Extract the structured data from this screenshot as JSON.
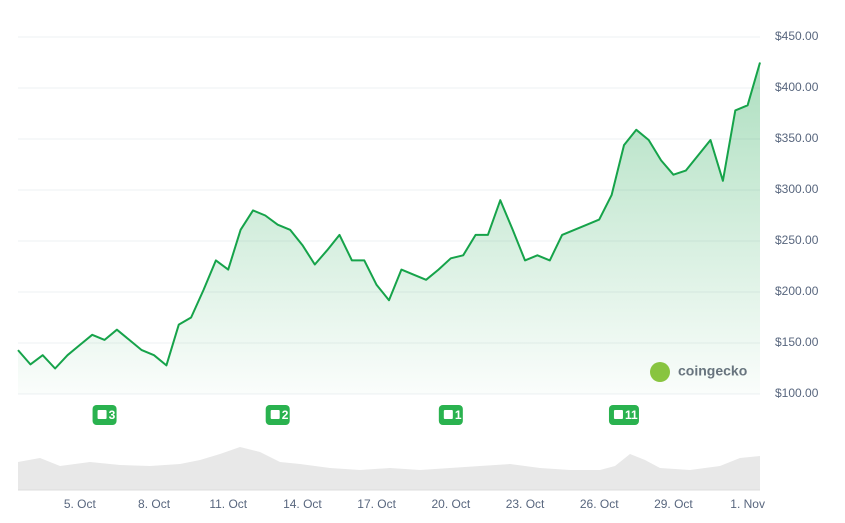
{
  "chart_data": {
    "type": "area",
    "categories": [
      null,
      null,
      null,
      null,
      null,
      "5. Oct",
      null,
      null,
      null,
      null,
      null,
      "8. Oct",
      null,
      null,
      null,
      null,
      null,
      "11. Oct",
      null,
      null,
      null,
      null,
      null,
      "14. Oct",
      null,
      null,
      null,
      null,
      null,
      "17. Oct",
      null,
      null,
      null,
      null,
      null,
      "20. Oct",
      null,
      null,
      null,
      null,
      null,
      "23. Oct",
      null,
      null,
      null,
      null,
      null,
      "26. Oct",
      null,
      null,
      null,
      null,
      null,
      "29. Oct",
      null,
      null,
      null,
      null,
      null,
      "1. Nov",
      null
    ],
    "series": [
      {
        "color": "#16a34a",
        "values": [
          143,
          129,
          138,
          125,
          138,
          148,
          158,
          153,
          163,
          153,
          143,
          138,
          128,
          168,
          175,
          202,
          231,
          222,
          261,
          280,
          275,
          266,
          261,
          246,
          227,
          241,
          256,
          231,
          231,
          207,
          192,
          222,
          217,
          212,
          222,
          233,
          236,
          256,
          256,
          290,
          261,
          231,
          236,
          231,
          256,
          261,
          266,
          271,
          295,
          344,
          359,
          349,
          329,
          315,
          319,
          334,
          349,
          309,
          378,
          383,
          425
        ]
      }
    ],
    "ylim": [
      100,
      450
    ],
    "yticks": [
      {
        "value": 100,
        "label": "$100.00"
      },
      {
        "value": 150,
        "label": "$150.00"
      },
      {
        "value": 200,
        "label": "$200.00"
      },
      {
        "value": 250,
        "label": "$250.00"
      },
      {
        "value": 300,
        "label": "$300.00"
      },
      {
        "value": 350,
        "label": "$350.00"
      },
      {
        "value": 400,
        "label": "$400.00"
      },
      {
        "value": 450,
        "label": "$450.00"
      }
    ],
    "grid": true,
    "annotations": [
      {
        "label": "3",
        "index": 7
      },
      {
        "label": "2",
        "index": 21
      },
      {
        "label": "1",
        "index": 35
      },
      {
        "label": "11",
        "index": 49
      }
    ],
    "watermark": "coingecko"
  }
}
